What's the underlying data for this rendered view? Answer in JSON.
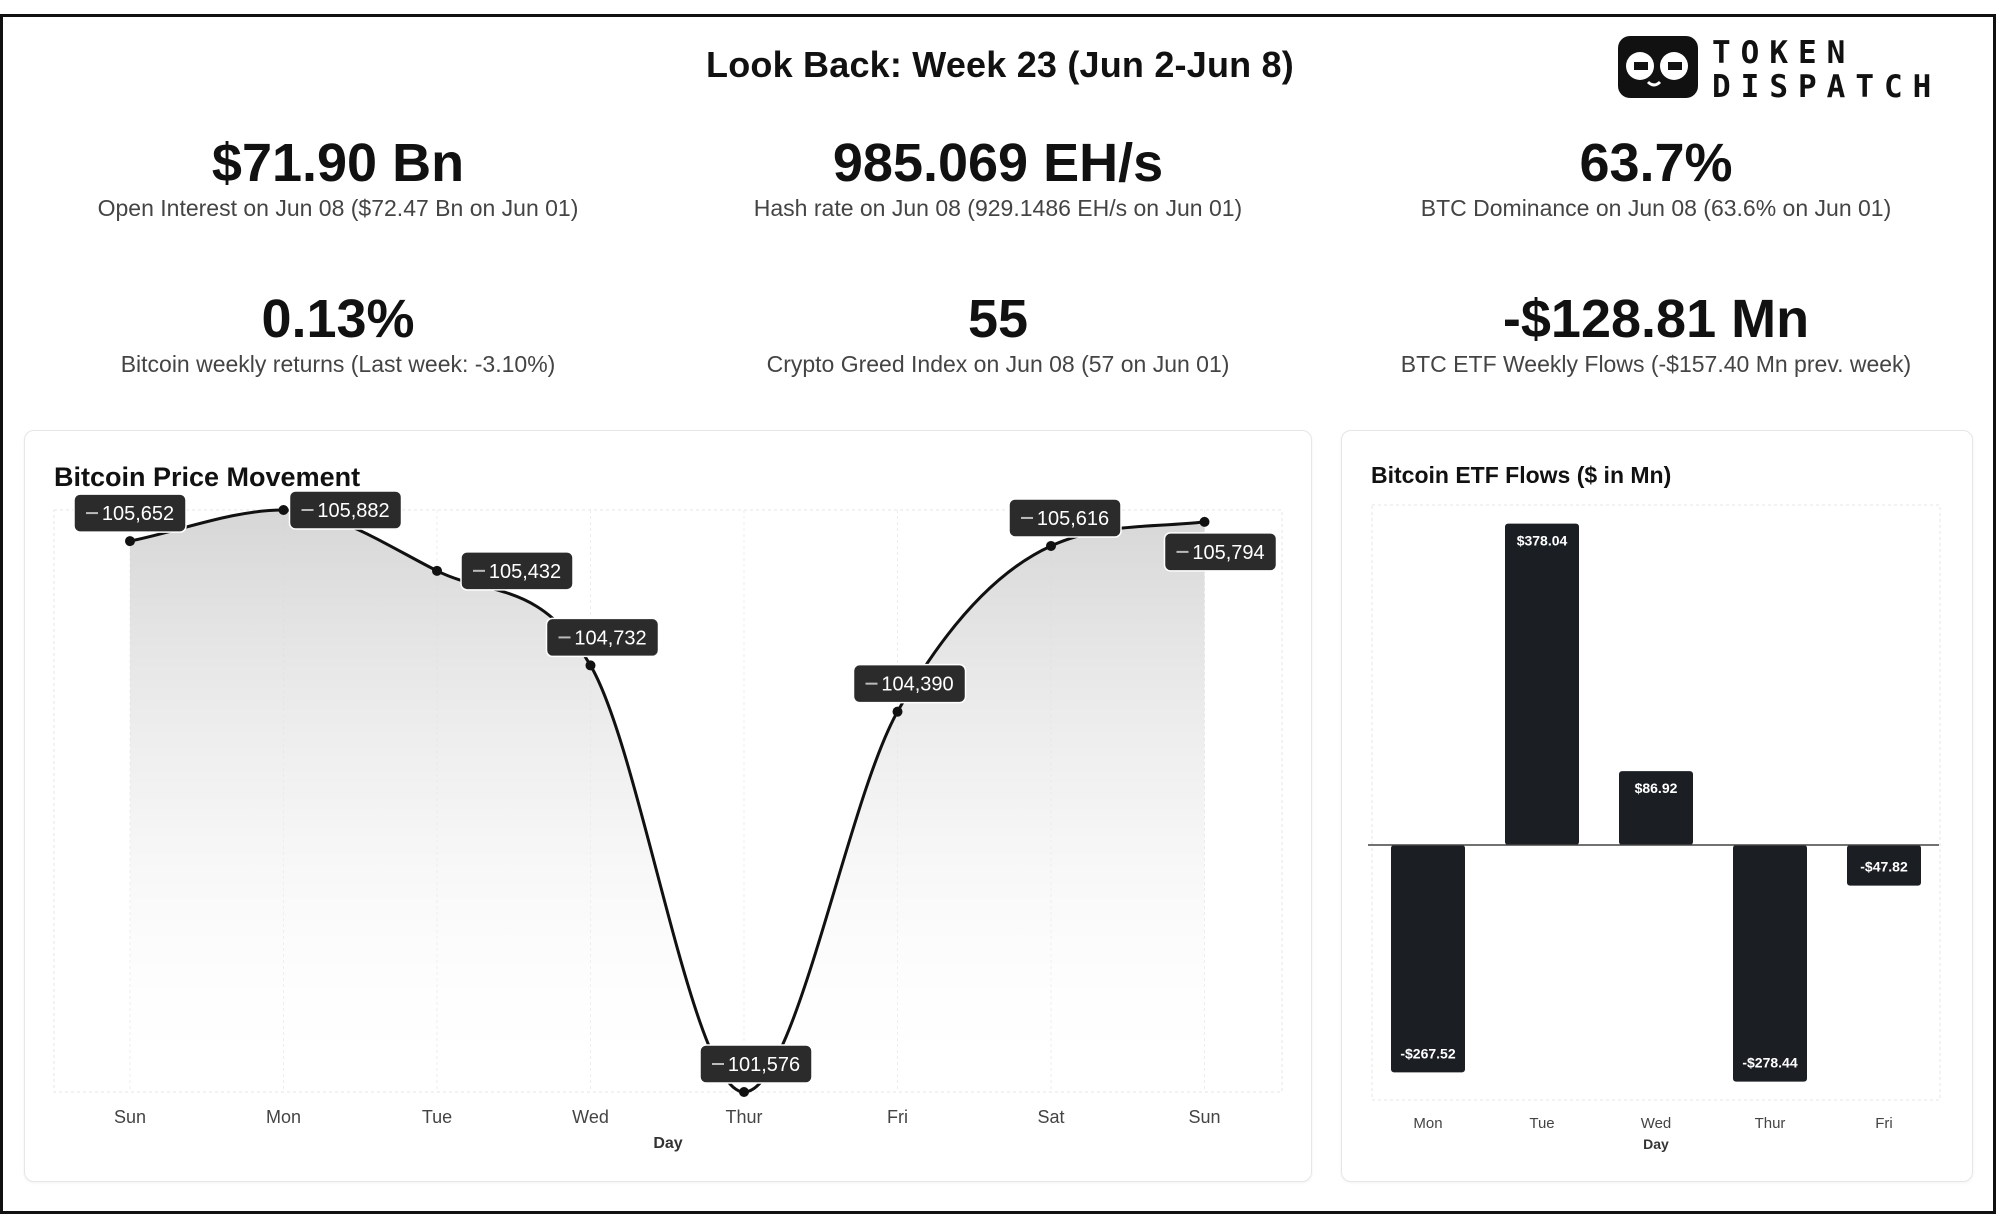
{
  "header": {
    "title": "Look Back: Week 23 (Jun 2-Jun 8)",
    "logo_text": [
      "TOKEN",
      "DISPATCH"
    ]
  },
  "stats": [
    {
      "value": "$71.90 Bn",
      "label": "Open Interest on Jun 08 ($72.47 Bn on Jun 01)"
    },
    {
      "value": "985.069 EH/s",
      "label": "Hash rate on Jun 08 (929.1486 EH/s on Jun 01)"
    },
    {
      "value": "63.7%",
      "label": "BTC Dominance on Jun 08 (63.6% on Jun 01)"
    },
    {
      "value": "0.13%",
      "label": "Bitcoin weekly returns (Last week: -3.10%)"
    },
    {
      "value": "55",
      "label": "Crypto Greed Index on Jun 08 (57 on Jun 01)"
    },
    {
      "value": "-$128.81 Mn",
      "label": "BTC ETF Weekly Flows (-$157.40 Mn prev. week)"
    }
  ],
  "chart_data": [
    {
      "type": "line",
      "title": "Bitcoin Price Movement",
      "xlabel": "Day",
      "ylabel": "",
      "categories": [
        "Sun",
        "Mon",
        "Tue",
        "Wed",
        "Thur",
        "Fri",
        "Sat",
        "Sun"
      ],
      "series": [
        {
          "values": [
            105652,
            105882,
            105432,
            104732,
            101576,
            104390,
            105616,
            105794
          ],
          "labels": [
            "105,652",
            "105,882",
            "105,432",
            "104,732",
            "101,576",
            "104,390",
            "105,616",
            "105,794"
          ]
        }
      ],
      "ylim": [
        101576,
        105882
      ],
      "grid": true,
      "area_fill": true,
      "legend": "none",
      "line_color": "#111111",
      "label_color": "#2b2b2b"
    },
    {
      "type": "bar",
      "title": "Bitcoin ETF Flows ($ in Mn)",
      "xlabel": "Day",
      "ylabel": "",
      "categories": [
        "Mon",
        "Tue",
        "Wed",
        "Thur",
        "Fri"
      ],
      "values": [
        -267.52,
        378.04,
        86.92,
        -278.44,
        -47.82
      ],
      "labels": [
        "-$267.52",
        "$378.04",
        "$86.92",
        "-$278.44",
        "-$47.82"
      ],
      "ylim": [
        -300,
        400
      ],
      "grid": true,
      "legend": "none",
      "bar_color": "#1b1f24"
    }
  ]
}
